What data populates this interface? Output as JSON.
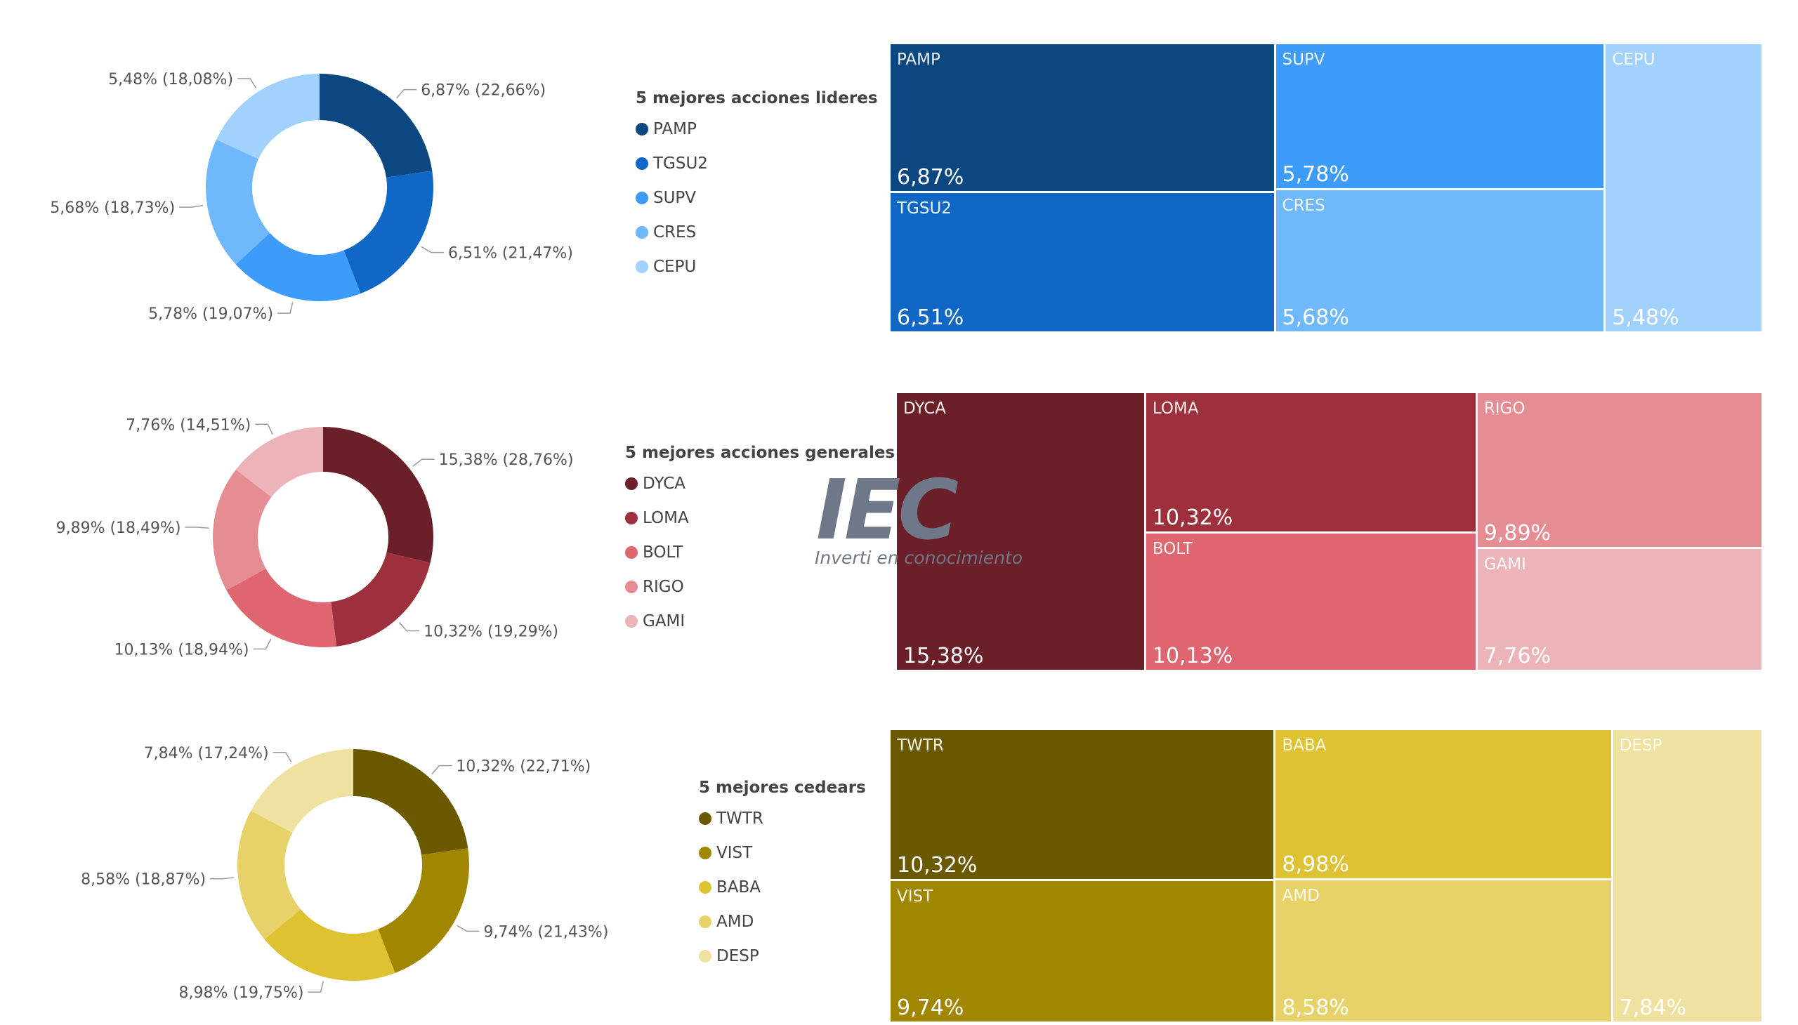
{
  "watermark": {
    "logo": "IEC",
    "tagline": "Inverti en conocimiento"
  },
  "chart_data": [
    {
      "type": "pie",
      "legend_title": "5 mejores acciones lideres",
      "categories": [
        "PAMP",
        "TGSU2",
        "SUPV",
        "CRES",
        "CEPU"
      ],
      "values": [
        6.87,
        6.51,
        5.78,
        5.68,
        5.48
      ],
      "value_labels": [
        "6,87%",
        "6,51%",
        "5,78%",
        "5,68%",
        "5,48%"
      ],
      "share_labels": [
        "22,66%",
        "21,47%",
        "19,07%",
        "18,73%",
        "18,08%"
      ],
      "colors": [
        "#0b4780",
        "#1167c5",
        "#3d9cf9",
        "#6eb8fb",
        "#a1d1fd"
      ],
      "treemap_columns": [
        [
          "PAMP",
          "TGSU2"
        ],
        [
          "SUPV",
          "CRES"
        ],
        [
          "CEPU"
        ]
      ]
    },
    {
      "type": "pie",
      "legend_title": "5 mejores acciones generales",
      "categories": [
        "DYCA",
        "LOMA",
        "BOLT",
        "RIGO",
        "GAMI"
      ],
      "values": [
        15.38,
        10.32,
        10.13,
        9.89,
        7.76
      ],
      "value_labels": [
        "15,38%",
        "10,32%",
        "10,13%",
        "9,89%",
        "7,76%"
      ],
      "share_labels": [
        "28,76%",
        "19,29%",
        "18,94%",
        "18,49%",
        "14,51%"
      ],
      "colors": [
        "#6b1f28",
        "#9e303d",
        "#df6670",
        "#e68c93",
        "#ecb4b9"
      ],
      "treemap_columns": [
        [
          "DYCA"
        ],
        [
          "LOMA",
          "BOLT"
        ],
        [
          "RIGO",
          "GAMI"
        ]
      ]
    },
    {
      "type": "pie",
      "legend_title": "5 mejores cedears",
      "categories": [
        "TWTR",
        "VIST",
        "BABA",
        "AMD",
        "DESP"
      ],
      "values": [
        10.32,
        9.74,
        8.98,
        8.58,
        7.84
      ],
      "value_labels": [
        "10,32%",
        "9,74%",
        "8,98%",
        "8,58%",
        "7,84%"
      ],
      "share_labels": [
        "22,71%",
        "21,43%",
        "19,75%",
        "18,87%",
        "17,24%"
      ],
      "colors": [
        "#6b5900",
        "#a18600",
        "#dfc232",
        "#e7d26a",
        "#efe19f"
      ],
      "treemap_columns": [
        [
          "TWTR",
          "VIST"
        ],
        [
          "BABA",
          "AMD"
        ],
        [
          "DESP"
        ]
      ]
    }
  ]
}
